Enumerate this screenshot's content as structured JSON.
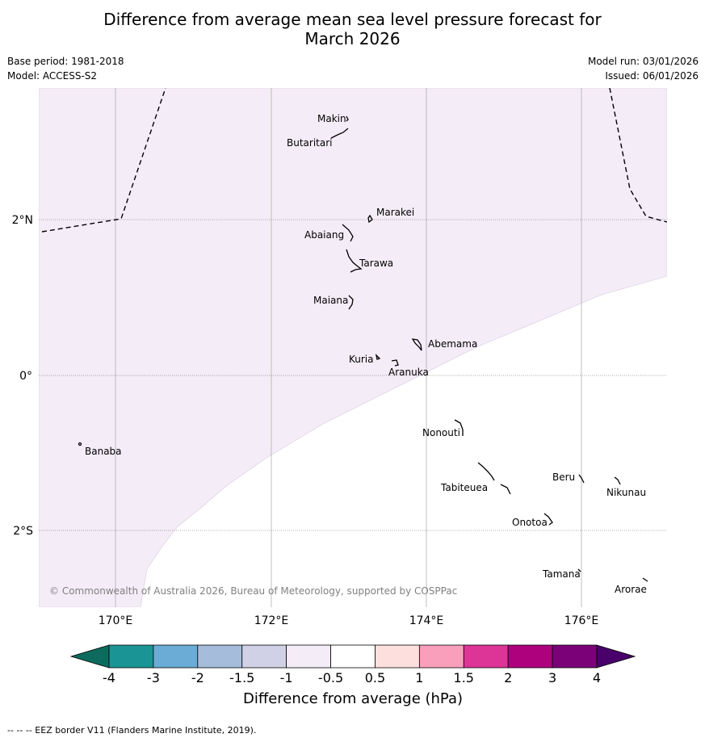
{
  "title_line1": "Difference from average mean sea level pressure forecast for",
  "title_line2": "March 2026",
  "base_period": "Base period: 1981-2018",
  "model": "Model: ACCESS-S2",
  "model_run": "Model run: 03/01/2026",
  "issued": "Issued: 06/01/2026",
  "lon_ticks": [
    "170°E",
    "172°E",
    "174°E",
    "176°E"
  ],
  "lat_ticks": [
    "2°N",
    "0°",
    "2°S"
  ],
  "islands": {
    "makin": "Makin",
    "butaritari": "Butaritari",
    "marakei": "Marakei",
    "abaiang": "Abaiang",
    "tarawa": "Tarawa",
    "maiana": "Maiana",
    "abemama": "Abemama",
    "kuria": "Kuria",
    "aranuka": "Aranuka",
    "nonouti": "Nonouti",
    "banaba": "Banaba",
    "beru": "Beru",
    "nikunau": "Nikunau",
    "tabiteuea": "Tabiteuea",
    "onotoa": "Onotoa",
    "tamana": "Tamana",
    "arorae": "Arorae"
  },
  "copyright": "© Commonwealth of Australia 2026, Bureau of Meteorology, supported by COSPPac",
  "colorbar": {
    "ticks": [
      "-4",
      "-3",
      "-2",
      "-1.5",
      "-1",
      "-0.5",
      "0.5",
      "1",
      "1.5",
      "2",
      "3",
      "4"
    ],
    "colors": [
      "#1a9494",
      "#6aacd5",
      "#a6bcdb",
      "#d0d1e6",
      "#f4ecf7",
      "#ffffff",
      "#fde0dd",
      "#f99fbb",
      "#dd3497",
      "#ae017e",
      "#7a0177"
    ],
    "under_color": "#0d6b5e",
    "over_color": "#49006a",
    "label": "Difference from average (hPa)"
  },
  "shading_color": "#f4ecf7",
  "footer": "--  --  -- EEZ border V11 (Flanders Marine Institute, 2019)."
}
